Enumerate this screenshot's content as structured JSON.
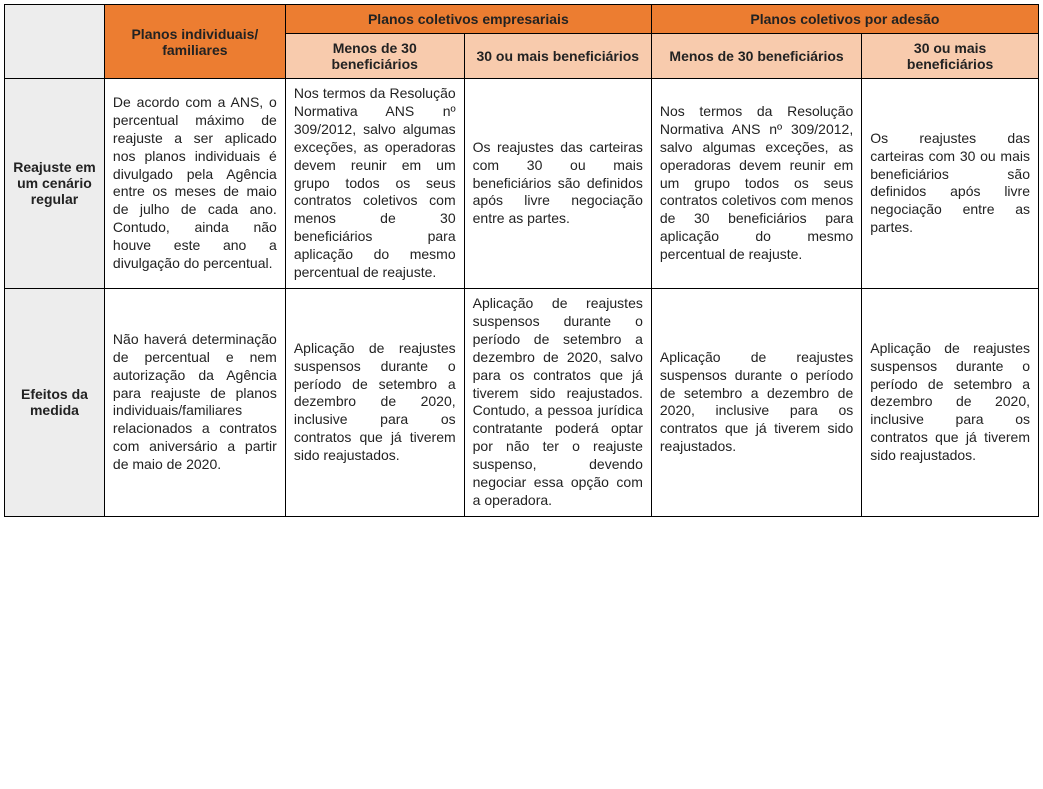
{
  "colors": {
    "header_orange": "#ec7d31",
    "header_light": "#f8cbad",
    "row_head_gray": "#ededed",
    "blank_corner": "#ededed",
    "body_bg": "#ffffff"
  },
  "header": {
    "blank": "",
    "individual": "Planos individuais/ familiares",
    "group_empresariais": "Planos coletivos empresariais",
    "group_adesao": "Planos coletivos por adesão",
    "sub_lt30": "Menos de 30 beneficiários",
    "sub_ge30": "30 ou mais beneficiários"
  },
  "rows": [
    {
      "label": "Reajuste em um cenário regular",
      "cells": [
        "De acordo com a ANS, o percentual máximo de reajuste a ser aplicado nos planos individuais é divulgado pela Agência entre os meses de maio de julho de cada ano. Contudo, ainda não houve este ano a divulgação do percentual.",
        "Nos termos da Resolução Normativa ANS nº 309/2012, salvo algumas exceções, as operadoras devem reunir em um grupo todos os seus contratos coletivos com menos de 30 beneficiários para aplicação do mesmo percentual de reajuste.",
        "Os reajustes das carteiras com 30 ou mais beneficiários são definidos após livre negociação entre as partes.",
        "Nos termos da Resolução Normativa ANS nº 309/2012, salvo algumas exceções, as operadoras devem reunir em um grupo todos os seus contratos coletivos com menos de 30 beneficiários para aplicação do mesmo percentual de reajuste.",
        "Os reajustes das carteiras com 30 ou mais beneficiários são definidos após livre negociação entre as partes."
      ]
    },
    {
      "label": "Efeitos da medida",
      "cells": [
        "Não haverá determinação de percentual e nem autorização da Agência para reajuste de planos individuais/familiares relacionados a contratos com aniversário a partir de maio de 2020.",
        "Aplicação de reajustes suspensos durante o período de setembro a dezembro de 2020, inclusive para os contratos que já tiverem sido reajustados.",
        "Aplicação de reajustes suspensos durante o período de setembro a dezembro de 2020, salvo para os contratos que já tiverem sido reajustados. Contudo, a pessoa jurídica contratante poderá optar por não ter o reajuste suspenso, devendo negociar essa opção com a operadora.",
        "Aplicação de reajustes suspensos durante o período de setembro a dezembro de 2020, inclusive para os contratos que já tiverem sido reajustados.",
        "Aplicação de reajustes suspensos durante o período de setembro a dezembro de 2020, inclusive para os contratos que já tiverem sido reajustados."
      ]
    }
  ]
}
